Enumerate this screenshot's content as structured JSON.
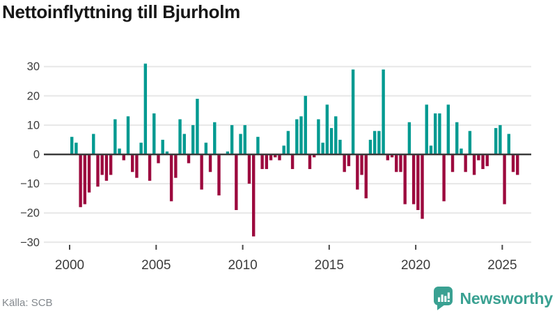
{
  "header": {
    "title": "Nettoinflyttning till Bjurholm"
  },
  "footer": {
    "source": "Källa: SCB",
    "brand": "Newsworthy"
  },
  "chart_data": {
    "type": "bar",
    "title": "Nettoinflyttning till Bjurholm",
    "frequency": "quarterly",
    "x_start": "2000 Q1",
    "x_end": "2025 Q4",
    "years": [
      {
        "year": 2000,
        "q": [
          6,
          4,
          -18,
          -17
        ]
      },
      {
        "year": 2001,
        "q": [
          -13,
          7,
          -11,
          -7
        ]
      },
      {
        "year": 2002,
        "q": [
          -9,
          -7,
          12,
          2
        ]
      },
      {
        "year": 2003,
        "q": [
          -2,
          13,
          -6,
          -8
        ]
      },
      {
        "year": 2004,
        "q": [
          4,
          31,
          -9,
          14
        ]
      },
      {
        "year": 2005,
        "q": [
          -3,
          5,
          1,
          -16
        ]
      },
      {
        "year": 2006,
        "q": [
          -8,
          12,
          7,
          -3
        ]
      },
      {
        "year": 2007,
        "q": [
          10,
          19,
          -12,
          4
        ]
      },
      {
        "year": 2008,
        "q": [
          -6,
          11,
          -14,
          0
        ]
      },
      {
        "year": 2009,
        "q": [
          1,
          10,
          -19,
          7
        ]
      },
      {
        "year": 2010,
        "q": [
          10,
          -10,
          -28,
          6
        ]
      },
      {
        "year": 2011,
        "q": [
          -5,
          -5,
          -2,
          -1
        ]
      },
      {
        "year": 2012,
        "q": [
          -2,
          3,
          8,
          -5
        ]
      },
      {
        "year": 2013,
        "q": [
          12,
          13,
          20,
          -5
        ]
      },
      {
        "year": 2014,
        "q": [
          -1,
          12,
          4,
          17
        ]
      },
      {
        "year": 2015,
        "q": [
          9,
          13,
          5,
          -6
        ]
      },
      {
        "year": 2016,
        "q": [
          -4,
          29,
          -12,
          -7
        ]
      },
      {
        "year": 2017,
        "q": [
          -15,
          5,
          8,
          8
        ]
      },
      {
        "year": 2018,
        "q": [
          29,
          -2,
          -1,
          -6
        ]
      },
      {
        "year": 2019,
        "q": [
          -6,
          -17,
          11,
          -17
        ]
      },
      {
        "year": 2020,
        "q": [
          -19,
          -22,
          17,
          3
        ]
      },
      {
        "year": 2021,
        "q": [
          14,
          14,
          -16,
          17
        ]
      },
      {
        "year": 2022,
        "q": [
          -6,
          11,
          2,
          -6
        ]
      },
      {
        "year": 2023,
        "q": [
          8,
          -7,
          -2,
          -5
        ]
      },
      {
        "year": 2024,
        "q": [
          -4,
          0,
          9,
          10
        ]
      },
      {
        "year": 2025,
        "q": [
          -17,
          7,
          -6,
          -7
        ]
      }
    ],
    "ylim": [
      -32,
      33
    ],
    "y_ticks": [
      "30",
      "20",
      "10",
      "0",
      "−10",
      "−20",
      "−30"
    ],
    "x_ticks": [
      2000,
      2005,
      2010,
      2015,
      2020,
      2025
    ],
    "positive_color": "#009A91",
    "negative_color": "#9C0A3E",
    "grid": true,
    "legend": false,
    "xlabel": "",
    "ylabel": ""
  }
}
